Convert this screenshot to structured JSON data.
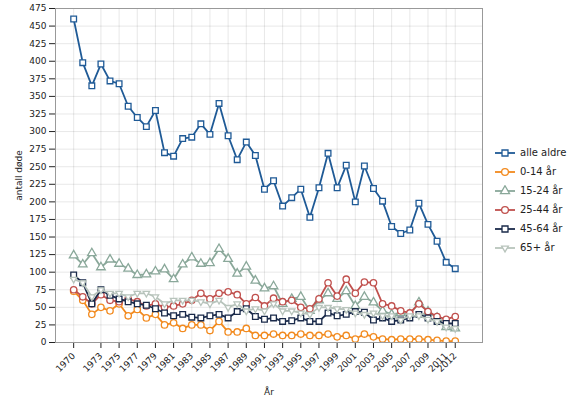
{
  "chart_data": {
    "type": "line",
    "x_label": "År",
    "y_label": "antall døde",
    "x": [
      1970,
      1971,
      1972,
      1973,
      1974,
      1975,
      1976,
      1977,
      1978,
      1979,
      1980,
      1981,
      1982,
      1983,
      1984,
      1985,
      1986,
      1987,
      1988,
      1989,
      1990,
      1991,
      1992,
      1993,
      1994,
      1995,
      1996,
      1997,
      1998,
      1999,
      2000,
      2001,
      2002,
      2003,
      2004,
      2005,
      2006,
      2007,
      2008,
      2009,
      2010,
      2011,
      2012
    ],
    "series": [
      {
        "name": "alle aldre",
        "color": "#1f5a96",
        "marker": "square",
        "values": [
          460,
          398,
          365,
          396,
          372,
          368,
          336,
          320,
          307,
          330,
          270,
          265,
          290,
          292,
          311,
          296,
          340,
          294,
          260,
          285,
          266,
          218,
          230,
          194,
          206,
          218,
          178,
          220,
          269,
          220,
          252,
          200,
          251,
          219,
          201,
          165,
          155,
          160,
          198,
          168,
          144,
          114,
          105
        ]
      },
      {
        "name": "0-14 år",
        "color": "#f28a1e",
        "marker": "circle",
        "values": [
          73,
          60,
          40,
          50,
          45,
          55,
          38,
          47,
          35,
          40,
          25,
          28,
          20,
          25,
          25,
          17,
          30,
          15,
          15,
          20,
          10,
          10,
          12,
          10,
          10,
          12,
          10,
          10,
          12,
          8,
          10,
          5,
          12,
          8,
          5,
          4,
          5,
          5,
          5,
          4,
          3,
          2,
          2
        ]
      },
      {
        "name": "15-24 år",
        "color": "#8aa89a",
        "marker": "triangle",
        "values": [
          124,
          111,
          127,
          107,
          118,
          112,
          105,
          96,
          97,
          101,
          104,
          90,
          111,
          121,
          112,
          113,
          133,
          119,
          98,
          108,
          88,
          77,
          80,
          55,
          62,
          65,
          45,
          60,
          70,
          62,
          73,
          52,
          65,
          57,
          45,
          40,
          42,
          40,
          57,
          44,
          35,
          22,
          20
        ]
      },
      {
        "name": "25-44 år",
        "color": "#c0504d",
        "marker": "circle",
        "values": [
          75,
          65,
          55,
          68,
          60,
          58,
          62,
          58,
          52,
          55,
          50,
          52,
          55,
          60,
          70,
          62,
          70,
          72,
          68,
          55,
          64,
          52,
          63,
          58,
          60,
          50,
          48,
          62,
          85,
          66,
          90,
          70,
          86,
          85,
          55,
          52,
          45,
          42,
          55,
          44,
          37,
          33,
          37
        ]
      },
      {
        "name": "45-64 år",
        "color": "#1a2a4a",
        "marker": "square",
        "values": [
          96,
          85,
          55,
          75,
          67,
          62,
          58,
          55,
          53,
          48,
          42,
          38,
          40,
          36,
          35,
          38,
          40,
          35,
          44,
          48,
          37,
          33,
          35,
          30,
          31,
          35,
          30,
          30,
          42,
          38,
          40,
          44,
          43,
          32,
          35,
          30,
          32,
          35,
          40,
          35,
          30,
          27,
          27
        ]
      },
      {
        "name": "65+ år",
        "color": "#b8c4bc",
        "marker": "triangle-down",
        "values": [
          90,
          85,
          65,
          75,
          70,
          70,
          65,
          70,
          70,
          65,
          55,
          60,
          60,
          60,
          58,
          55,
          60,
          50,
          55,
          45,
          48,
          45,
          55,
          45,
          45,
          42,
          40,
          50,
          50,
          48,
          47,
          42,
          40,
          42,
          38,
          38,
          32,
          38,
          38,
          33,
          30,
          22,
          20
        ]
      }
    ],
    "xlim": [
      1968,
      2015
    ],
    "xticks": [
      1970,
      1973,
      1975,
      1977,
      1979,
      1981,
      1983,
      1985,
      1987,
      1989,
      1991,
      1993,
      1995,
      1997,
      1999,
      2001,
      2003,
      2005,
      2007,
      2009,
      2011,
      2012
    ],
    "ylim": [
      0,
      475
    ],
    "yticks": [
      0,
      25,
      50,
      75,
      100,
      125,
      150,
      175,
      200,
      225,
      250,
      275,
      300,
      325,
      350,
      375,
      400,
      425,
      450,
      475
    ],
    "grid": true,
    "legend": "right"
  }
}
